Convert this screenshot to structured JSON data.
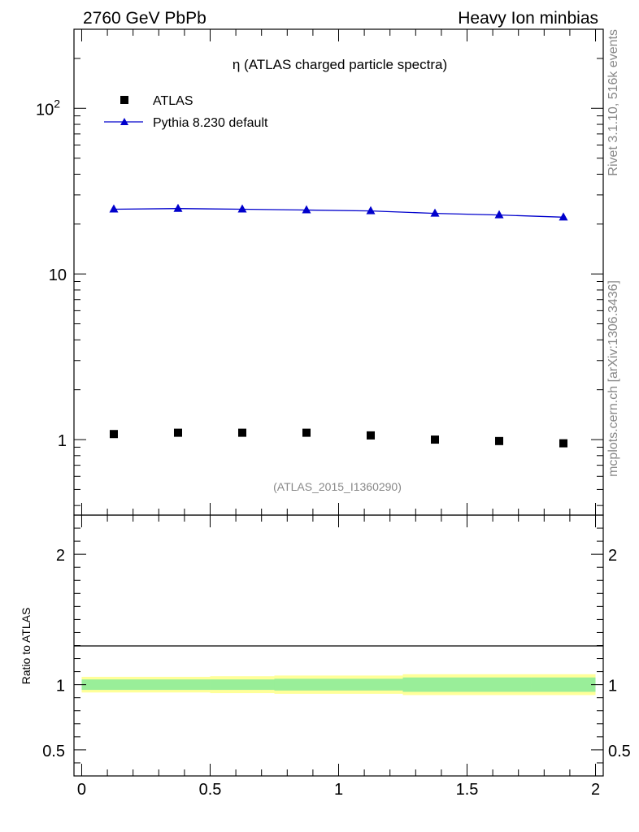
{
  "header": {
    "left": "2760 GeV PbPb",
    "right": "Heavy Ion minbias"
  },
  "side_labels": {
    "top": "Rivet 3.1.10,  516k events",
    "bottom": "mcplots.cern.ch [arXiv:1306.3436]"
  },
  "colors": {
    "pythia": "#0000cc",
    "atlas": "#000000",
    "band_inner": "#99ee99",
    "band_outer": "#ffff99"
  },
  "chart_data": [
    {
      "type": "scatter",
      "title": "η (ATLAS charged particle spectra)",
      "watermark": "(ATLAS_2015_I1360290)",
      "yscale": "log",
      "xlim": [
        -0.03,
        2.03
      ],
      "ylim": [
        0.35,
        300
      ],
      "yticks": [
        {
          "value": 1,
          "label": "1",
          "sup": ""
        },
        {
          "value": 10,
          "label": "10",
          "sup": ""
        },
        {
          "value": 100,
          "label": "10",
          "sup": "2"
        }
      ],
      "legend_position": "top-left",
      "series": [
        {
          "name": "ATLAS",
          "marker": "square",
          "x": [
            0.125,
            0.375,
            0.625,
            0.875,
            1.125,
            1.375,
            1.625,
            1.875
          ],
          "values": [
            1.08,
            1.1,
            1.1,
            1.1,
            1.06,
            1.0,
            0.98,
            0.95
          ]
        },
        {
          "name": "Pythia 8.230 default",
          "marker": "triangle",
          "line": true,
          "x": [
            0.125,
            0.375,
            0.625,
            0.875,
            1.125,
            1.375,
            1.625,
            1.875
          ],
          "values": [
            24.6,
            24.8,
            24.6,
            24.3,
            24.0,
            23.2,
            22.7,
            22.0
          ]
        }
      ]
    },
    {
      "type": "line",
      "ylabel": "Ratio to ATLAS",
      "xlim": [
        -0.03,
        2.03
      ],
      "ylim": [
        0.3,
        2.3
      ],
      "xticks": [
        {
          "value": 0,
          "label": "0"
        },
        {
          "value": 0.5,
          "label": "0.5"
        },
        {
          "value": 1,
          "label": "1"
        },
        {
          "value": 1.5,
          "label": "1.5"
        },
        {
          "value": 2,
          "label": "2"
        }
      ],
      "yticks": [
        {
          "value": 0.5,
          "label": "0.5"
        },
        {
          "value": 1,
          "label": "1"
        },
        {
          "value": 2,
          "label": "2"
        }
      ],
      "ratio_line": 1.0,
      "bands": {
        "edges": [
          0,
          0.25,
          0.5,
          0.75,
          1.0,
          1.25,
          1.5,
          1.75,
          2.0
        ],
        "inner": [
          0.04,
          0.04,
          0.04,
          0.045,
          0.045,
          0.055,
          0.055,
          0.055
        ],
        "outer": [
          0.06,
          0.06,
          0.065,
          0.07,
          0.07,
          0.08,
          0.08,
          0.08
        ]
      }
    }
  ]
}
